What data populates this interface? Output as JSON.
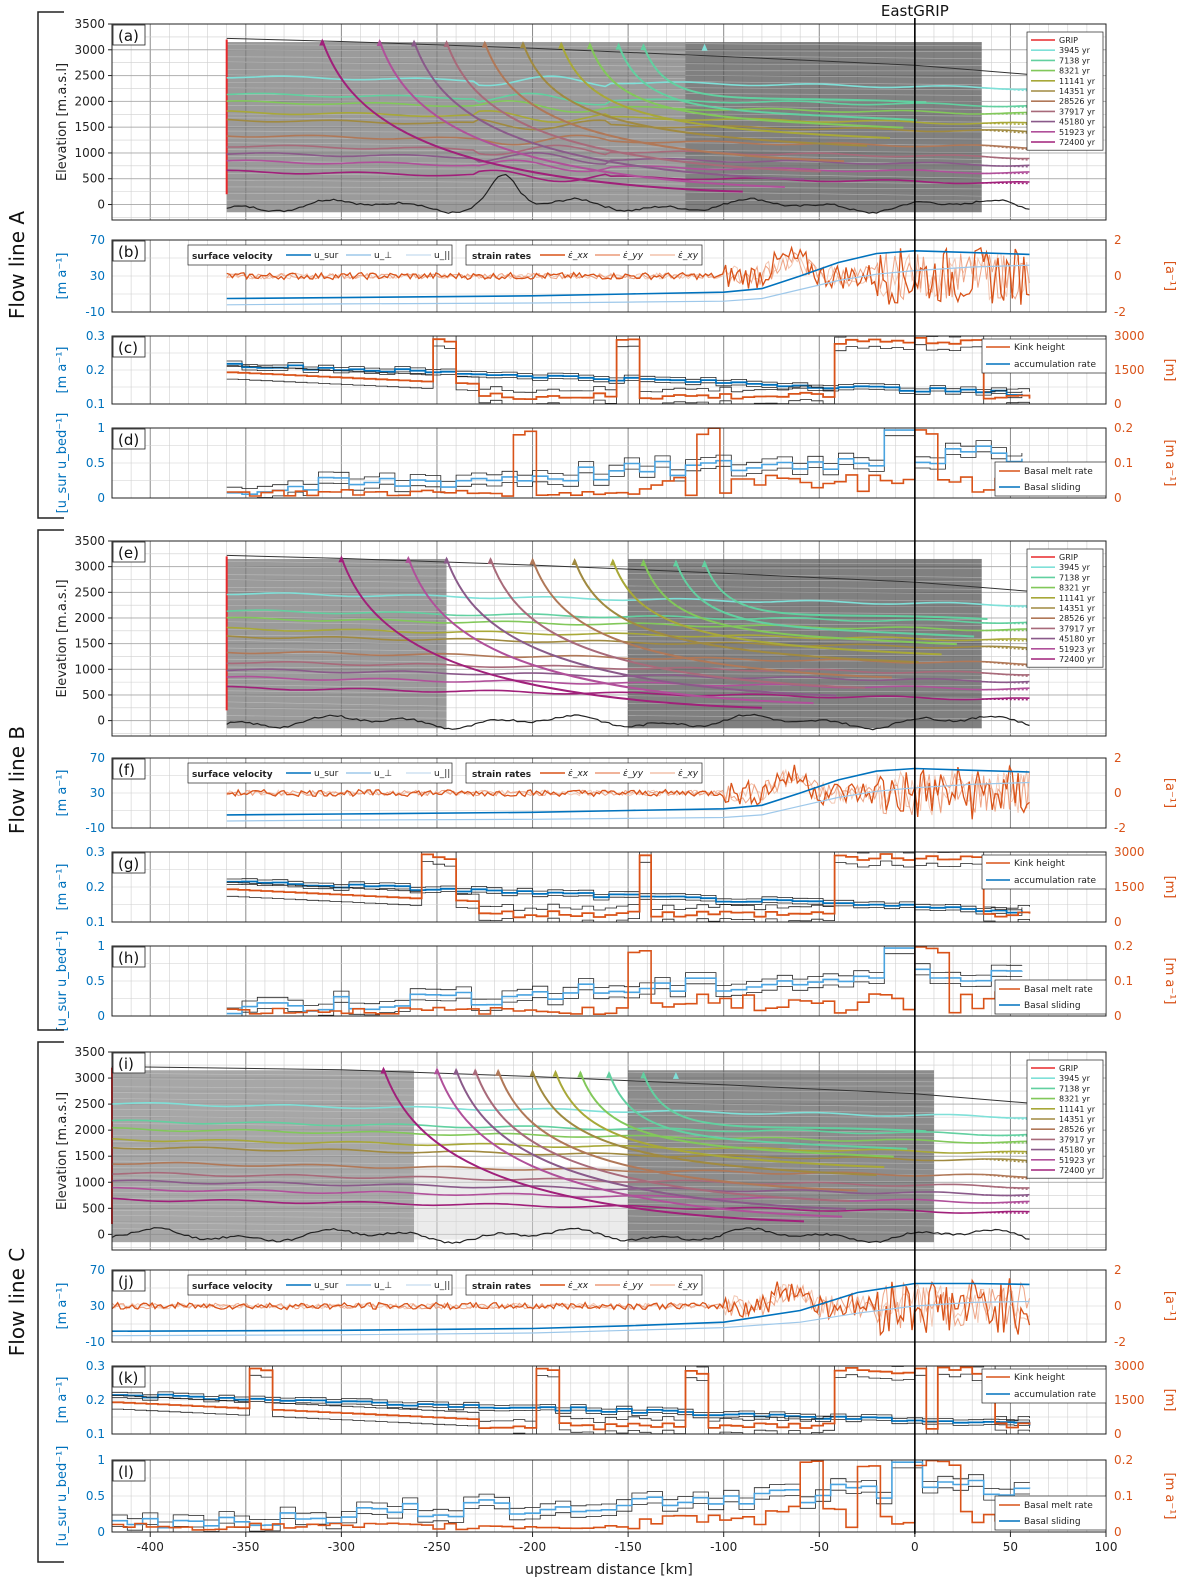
{
  "figure": {
    "eastgrip_label": "EastGRIP",
    "x_axis_label": "upstream distance [km]",
    "x_ticks": [
      "-400",
      "-350",
      "-300",
      "-250",
      "-200",
      "-150",
      "-100",
      "-50",
      "0",
      "50",
      "100"
    ],
    "flowline_labels": [
      "Flow line A",
      "Flow line B",
      "Flow line C"
    ]
  },
  "colors": {
    "blue": "#0072bd",
    "orange": "#d95319",
    "grip_red": "#e8282b",
    "isochrones": [
      "#7fe0d8",
      "#62d0a0",
      "#82c85a",
      "#a8a838",
      "#a08a40",
      "#b07858",
      "#a86a7a",
      "#8a5a8a",
      "#b0509a",
      "#a0207a"
    ]
  },
  "legends": {
    "isochrone_entries": [
      "GRIP",
      "3945 yr",
      "7138 yr",
      "8321 yr",
      "11141 yr",
      "14351 yr",
      "28526 yr",
      "37917 yr",
      "45180 yr",
      "51923 yr",
      "72400 yr"
    ],
    "velocity_title": "surface velocity",
    "velocity_entries": [
      "u_sur",
      "u_⊥",
      "u_||"
    ],
    "strain_title": "strain rates",
    "strain_entries": [
      "ε̇_xx",
      "ε̇_yy",
      "ε̇_xy"
    ],
    "kink_entries": [
      "Kink height",
      "accumulation rate"
    ],
    "melt_entries": [
      "Basal melt rate",
      "Basal sliding"
    ]
  },
  "panel_labels": [
    "(a)",
    "(b)",
    "(c)",
    "(d)",
    "(e)",
    "(f)",
    "(g)",
    "(h)",
    "(i)",
    "(j)",
    "(k)",
    "(l)"
  ],
  "axis_text": {
    "elev_ylabel": "Elevation [m.a.s.l]",
    "elev_ticks": [
      "3500",
      "3000",
      "2500",
      "2000",
      "1500",
      "1000",
      "500",
      "0"
    ],
    "vel_ylabel": "[m a⁻¹]",
    "vel_ticks": [
      "70",
      "30",
      "-10"
    ],
    "strain_ylabel": "[a⁻¹]",
    "strain_ticks": [
      "2",
      "0",
      "-2"
    ],
    "acc_ylabel": "[m a⁻¹]",
    "acc_ticks": [
      "0.3",
      "0.2",
      "0.1"
    ],
    "kink_ylabel": "[m]",
    "kink_ticks": [
      "3000",
      "1500",
      "0"
    ],
    "slide_ylabel": "[u_sur u_bed⁻¹]",
    "slide_ticks": [
      "1",
      "0.5",
      "0"
    ],
    "melt_ylabel": "[m a⁻¹]",
    "melt_ticks": [
      "0.2",
      "0.1",
      "0"
    ]
  },
  "chart_data": [
    {
      "type": "line",
      "panel": "(a) elevation A",
      "x_range_km": [
        -420,
        100
      ],
      "ylim": [
        -300,
        3500
      ],
      "surface": {
        "x": [
          -360,
          -300,
          -250,
          -200,
          -150,
          -100,
          -50,
          0,
          50,
          60
        ],
        "y": [
          3230,
          3160,
          3080,
          3000,
          2900,
          2820,
          2740,
          2680,
          2600,
          2560
        ]
      },
      "bed": {
        "x": [
          -360,
          -330,
          -300,
          -260,
          -230,
          -210,
          -190,
          -160,
          -130,
          -100,
          -70,
          -40,
          0,
          30,
          60
        ],
        "y": [
          200,
          120,
          80,
          100,
          650,
          -200,
          150,
          80,
          60,
          50,
          100,
          20,
          -80,
          -20,
          -150
        ]
      },
      "isochrones": [
        {
          "age": "3945 yr",
          "y": [
            2500,
            2460,
            2420,
            2380,
            2340,
            2300,
            2260,
            2220,
            2180,
            2150
          ]
        },
        {
          "age": "7138 yr",
          "y": [
            2150,
            2120,
            2080,
            2050,
            2010,
            1980,
            1950,
            1920,
            1890,
            1860
          ]
        },
        {
          "age": "8321 yr",
          "y": [
            2000,
            1970,
            1940,
            1910,
            1880,
            1850,
            1820,
            1790,
            1760,
            1730
          ]
        },
        {
          "age": "11141 yr",
          "y": [
            1800,
            1770,
            1740,
            1710,
            1680,
            1650,
            1620,
            1590,
            1560,
            1530
          ]
        },
        {
          "age": "14351 yr",
          "y": [
            1650,
            1620,
            1590,
            1560,
            1530,
            1500,
            1470,
            1440,
            1410,
            1380
          ]
        },
        {
          "age": "28526 yr",
          "y": [
            1350,
            1320,
            1290,
            1260,
            1230,
            1200,
            1170,
            1140,
            1110,
            1080
          ]
        },
        {
          "age": "37917 yr",
          "y": [
            1150,
            1120,
            1090,
            1060,
            1030,
            1000,
            970,
            940,
            910,
            880
          ]
        },
        {
          "age": "45180 yr",
          "y": [
            1000,
            970,
            940,
            910,
            880,
            850,
            820,
            790,
            760,
            730
          ]
        },
        {
          "age": "51923 yr",
          "y": [
            850,
            820,
            790,
            760,
            730,
            700,
            670,
            640,
            610,
            580
          ]
        },
        {
          "age": "72400 yr",
          "y": [
            650,
            620,
            590,
            560,
            530,
            500,
            470,
            440,
            410,
            380
          ]
        }
      ]
    },
    {
      "type": "line",
      "panel": "(b) velocity & strain A",
      "ylim_left": [
        -10,
        70
      ],
      "ylim_right": [
        -2,
        2
      ],
      "u_sur": {
        "x": [
          -360,
          -300,
          -250,
          -200,
          -150,
          -100,
          -80,
          -60,
          -40,
          -20,
          0,
          20,
          40,
          60
        ],
        "y": [
          5,
          6,
          7,
          8,
          10,
          12,
          16,
          30,
          45,
          55,
          58,
          57,
          55,
          54
        ]
      },
      "u_perp": {
        "x": [
          -360,
          -300,
          -200,
          -150,
          -100,
          -80,
          -60,
          -40,
          -20,
          0,
          30,
          60
        ],
        "y": [
          -2,
          -1,
          0,
          1,
          2,
          5,
          15,
          25,
          32,
          36,
          40,
          42
        ]
      }
    },
    {
      "type": "line",
      "panel": "(c) accumulation & kink A",
      "ylim_left": [
        0.1,
        0.3
      ],
      "ylim_right": [
        0,
        3000
      ],
      "accumulation": {
        "x": [
          -360,
          -340,
          -320,
          -300,
          -280,
          -260,
          -240,
          -220,
          -200,
          -180,
          -160,
          -140,
          -120,
          -100,
          -80,
          -60,
          -40,
          -20,
          0,
          20,
          40,
          60
        ],
        "y": [
          0.22,
          0.21,
          0.2,
          0.19,
          0.18,
          0.17,
          0.17,
          0.16,
          0.16,
          0.165,
          0.16,
          0.155,
          0.15,
          0.15,
          0.15,
          0.148,
          0.14,
          0.13,
          0.125,
          0.13,
          0.125,
          0.125
        ]
      },
      "kink": {
        "x": [
          -360,
          -340,
          -320,
          -300,
          -280,
          -260,
          -255,
          -245,
          -240,
          -200,
          -160,
          -155,
          -145,
          -140,
          -100,
          -50,
          -45,
          -40,
          -30,
          0,
          30,
          60
        ],
        "y": [
          1400,
          1300,
          1200,
          1100,
          1000,
          900,
          3000,
          3000,
          0,
          0,
          0,
          3000,
          3000,
          0,
          0,
          0,
          1500,
          2800,
          3000,
          3000,
          2800,
          2600
        ]
      }
    },
    {
      "type": "line",
      "panel": "(d) sliding & melt A",
      "ylim_left": [
        0,
        1
      ],
      "ylim_right": [
        0,
        0.2
      ],
      "sliding": {
        "x": [
          -360,
          -340,
          -320,
          -300,
          -280,
          -260,
          -240,
          -220,
          -200,
          -180,
          -160,
          -140,
          -120,
          -100,
          -80,
          -60,
          -40,
          -20,
          0,
          20,
          40,
          60
        ],
        "y": [
          0.1,
          0.15,
          0.2,
          0.15,
          0.2,
          0.25,
          0.25,
          0.3,
          0.35,
          0.35,
          0.4,
          0.45,
          0.5,
          0.55,
          0.7,
          0.75,
          0.85,
          0.95,
          0.95,
          0.8,
          0.7,
          0.6
        ]
      },
      "melt": {
        "x": [
          -360,
          -280,
          -240,
          -220,
          -215,
          -205,
          -200,
          -160,
          -150,
          -140,
          -120,
          -115,
          -105,
          -100,
          -60,
          -40,
          0,
          10,
          20,
          40,
          60
        ],
        "y": [
          0,
          0,
          0.01,
          0.02,
          0.1,
          0.1,
          0.02,
          0.03,
          0.12,
          0.03,
          0.04,
          0.17,
          0.17,
          0.04,
          0.03,
          0.05,
          0.2,
          0.15,
          0.08,
          0.05,
          0.1
        ]
      }
    },
    {
      "type": "line",
      "panel": "(e) elevation B",
      "x_range_km": [
        -420,
        100
      ],
      "ylim": [
        -300,
        3500
      ]
    },
    {
      "type": "line",
      "panel": "(f) velocity & strain B",
      "ylim_left": [
        -10,
        70
      ],
      "ylim_right": [
        -2,
        2
      ]
    },
    {
      "type": "line",
      "panel": "(g) accumulation & kink B",
      "ylim_left": [
        0.1,
        0.3
      ],
      "ylim_right": [
        0,
        3000
      ]
    },
    {
      "type": "line",
      "panel": "(h) sliding & melt B",
      "ylim_left": [
        0,
        1
      ],
      "ylim_right": [
        0,
        0.2
      ]
    },
    {
      "type": "line",
      "panel": "(i) elevation C",
      "x_range_km": [
        -420,
        100
      ],
      "ylim": [
        -300,
        3500
      ]
    },
    {
      "type": "line",
      "panel": "(j) velocity & strain C",
      "ylim_left": [
        -10,
        70
      ],
      "ylim_right": [
        -2,
        2
      ]
    },
    {
      "type": "line",
      "panel": "(k) accumulation & kink C",
      "ylim_left": [
        0.1,
        0.3
      ],
      "ylim_right": [
        0,
        3000
      ]
    },
    {
      "type": "line",
      "panel": "(l) sliding & melt C",
      "ylim_left": [
        0,
        1
      ],
      "ylim_right": [
        0,
        0.2
      ]
    }
  ]
}
